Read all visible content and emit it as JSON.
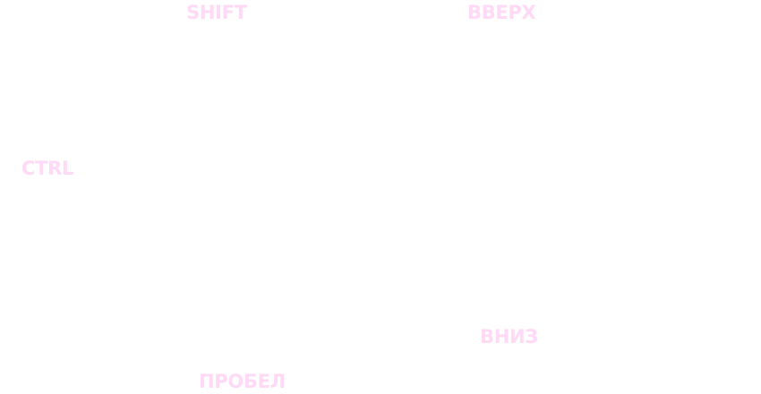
{
  "controls": {
    "shift": "SHIFT",
    "up": "ВВЕРХ",
    "ctrl": "CTRL",
    "down": "ВНИЗ",
    "space": "ПРОБЕЛ"
  },
  "colors": {
    "background": "#ffffff",
    "label": "#ffd9f5"
  }
}
